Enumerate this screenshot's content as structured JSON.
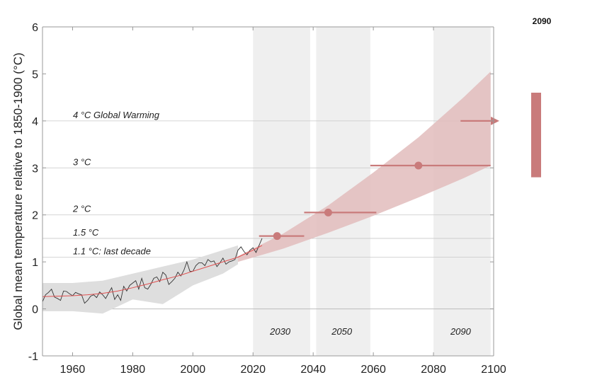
{
  "chart_data": {
    "type": "line",
    "ylabel": "Global mean temperature relative to 1850-1900 (°C)",
    "xlim": [
      1950,
      2100
    ],
    "ylim": [
      -1,
      6
    ],
    "x_ticks": [
      "1960",
      "1980",
      "2000",
      "2020",
      "2040",
      "2060",
      "2080",
      "2100"
    ],
    "y_ticks": [
      "-1",
      "0",
      "1",
      "2",
      "3",
      "4",
      "5",
      "6"
    ],
    "warming_levels": [
      {
        "label": "1.1 °C: last decade",
        "value": 1.1
      },
      {
        "label": "1.5 °C",
        "value": 1.5
      },
      {
        "label": "2 °C",
        "value": 2
      },
      {
        "label": "3 °C",
        "value": 3
      },
      {
        "label": "4 °C Global Warming",
        "value": 4
      }
    ],
    "periods": [
      {
        "label": "2030",
        "start": 2020,
        "end": 2039
      },
      {
        "label": "2050",
        "start": 2041,
        "end": 2059
      },
      {
        "label": "2090",
        "start": 2080,
        "end": 2099
      }
    ],
    "observed": {
      "x": [
        1950,
        1951,
        1952,
        1953,
        1954,
        1955,
        1956,
        1957,
        1958,
        1959,
        1960,
        1961,
        1962,
        1963,
        1964,
        1965,
        1966,
        1967,
        1968,
        1969,
        1970,
        1971,
        1972,
        1973,
        1974,
        1975,
        1976,
        1977,
        1978,
        1979,
        1980,
        1981,
        1982,
        1983,
        1984,
        1985,
        1986,
        1987,
        1988,
        1989,
        1990,
        1991,
        1992,
        1993,
        1994,
        1995,
        1996,
        1997,
        1998,
        1999,
        2000,
        2001,
        2002,
        2003,
        2004,
        2005,
        2006,
        2007,
        2008,
        2009,
        2010,
        2011,
        2012,
        2013,
        2014,
        2015,
        2016,
        2017,
        2018,
        2019,
        2020,
        2021,
        2022,
        2023
      ],
      "y": [
        0.15,
        0.3,
        0.35,
        0.42,
        0.25,
        0.22,
        0.18,
        0.38,
        0.37,
        0.32,
        0.28,
        0.35,
        0.32,
        0.3,
        0.12,
        0.18,
        0.27,
        0.3,
        0.24,
        0.36,
        0.3,
        0.22,
        0.34,
        0.45,
        0.2,
        0.3,
        0.18,
        0.48,
        0.38,
        0.5,
        0.55,
        0.6,
        0.42,
        0.65,
        0.45,
        0.42,
        0.52,
        0.65,
        0.68,
        0.58,
        0.78,
        0.72,
        0.52,
        0.58,
        0.65,
        0.78,
        0.7,
        0.82,
        1.0,
        0.8,
        0.8,
        0.92,
        0.98,
        0.98,
        0.92,
        1.05,
        1.0,
        1.02,
        0.9,
        0.98,
        1.08,
        0.95,
        1.0,
        1.02,
        1.05,
        1.25,
        1.32,
        1.22,
        1.15,
        1.25,
        1.3,
        1.2,
        1.35,
        1.5
      ]
    },
    "trend": {
      "x": [
        1950,
        1955,
        1960,
        1965,
        1970,
        1975,
        1980,
        1985,
        1990,
        1995,
        2000,
        2005,
        2010,
        2015,
        2020,
        2023
      ],
      "y": [
        0.26,
        0.27,
        0.28,
        0.3,
        0.33,
        0.38,
        0.45,
        0.53,
        0.62,
        0.7,
        0.8,
        0.9,
        1.0,
        1.1,
        1.25,
        1.35
      ]
    },
    "model_band": {
      "x": [
        1950,
        1960,
        1970,
        1980,
        1990,
        2000,
        2010,
        2015
      ],
      "lower": [
        -0.05,
        -0.05,
        -0.1,
        0.2,
        0.1,
        0.5,
        0.75,
        0.95
      ],
      "upper": [
        0.55,
        0.55,
        0.6,
        0.75,
        0.9,
        1.05,
        1.25,
        1.35
      ]
    },
    "projection_band": {
      "x": [
        2015,
        2030,
        2045,
        2060,
        2075,
        2090,
        2099
      ],
      "lower": [
        1.0,
        1.28,
        1.62,
        1.98,
        2.37,
        2.78,
        3.05
      ],
      "upper": [
        1.12,
        1.6,
        2.2,
        2.9,
        3.65,
        4.5,
        5.05
      ]
    },
    "crossings": [
      {
        "level": "1.5 °C",
        "central": 2028,
        "min": 2022,
        "max": 2037,
        "value": 1.55
      },
      {
        "level": "2 °C",
        "central": 2045,
        "min": 2037,
        "max": 2061,
        "value": 2.05
      },
      {
        "level": "3 °C",
        "central": 2075,
        "min": 2059,
        "max": 2099,
        "value": 3.05
      },
      {
        "level": "4 °C",
        "central": null,
        "min": 2089,
        "max": 2101,
        "value": 4.0
      }
    ],
    "side_panel": {
      "label": "2090",
      "range": [
        2.8,
        4.6
      ]
    },
    "colors": {
      "projection": "#c97b7b",
      "band": "#e2bcbc",
      "model": "#dedede",
      "period": "#efefef",
      "observed": "#333333",
      "trend": "#e05050"
    }
  }
}
